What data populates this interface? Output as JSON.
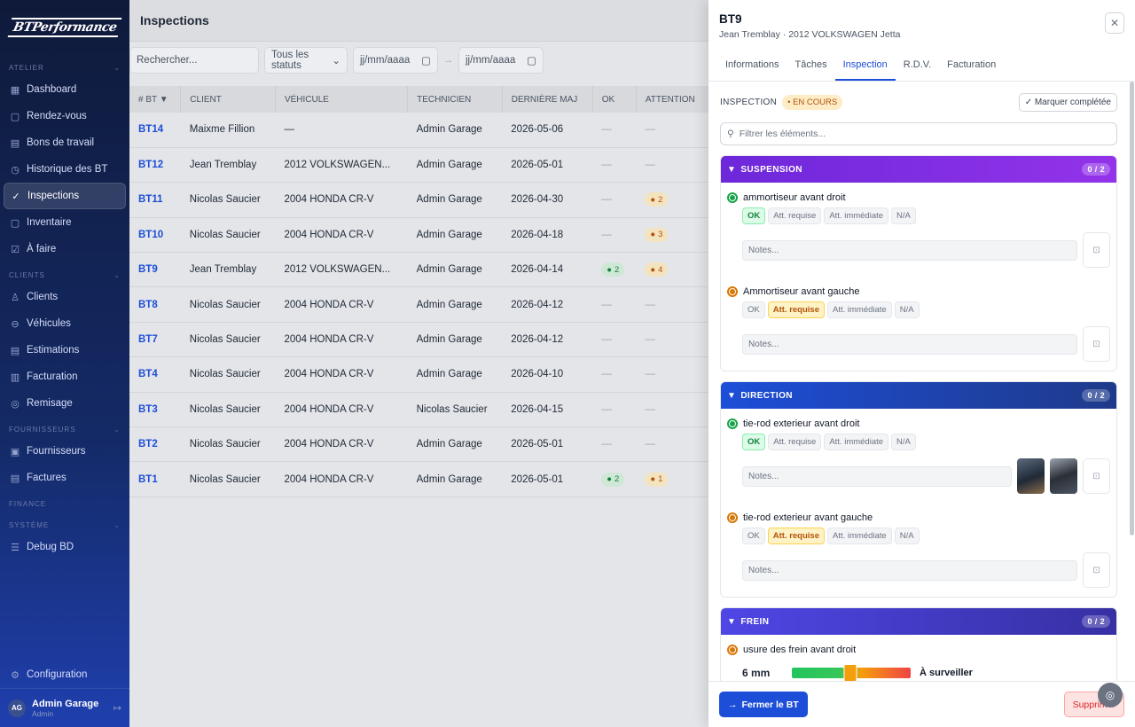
{
  "app": {
    "logo_text": "BTPerformance"
  },
  "sidebar": {
    "sections": [
      {
        "title": "ATELIER",
        "items": [
          {
            "label": "Dashboard",
            "icon": "grid-icon"
          },
          {
            "label": "Rendez-vous",
            "icon": "calendar-icon"
          },
          {
            "label": "Bons de travail",
            "icon": "clipboard-icon"
          },
          {
            "label": "Historique des BT",
            "icon": "clock-icon"
          },
          {
            "label": "Inspections",
            "icon": "check-circle-icon",
            "active": true
          },
          {
            "label": "Inventaire",
            "icon": "box-icon"
          },
          {
            "label": "À faire",
            "icon": "checkbox-icon"
          }
        ]
      },
      {
        "title": "CLIENTS",
        "items": [
          {
            "label": "Clients",
            "icon": "users-icon"
          },
          {
            "label": "Véhicules",
            "icon": "car-icon"
          },
          {
            "label": "Estimations",
            "icon": "document-icon"
          },
          {
            "label": "Facturation",
            "icon": "invoice-icon"
          },
          {
            "label": "Remisage",
            "icon": "tire-icon"
          }
        ]
      },
      {
        "title": "FOURNISSEURS",
        "items": [
          {
            "label": "Fournisseurs",
            "icon": "building-icon"
          },
          {
            "label": "Factures",
            "icon": "file-icon"
          }
        ]
      },
      {
        "title": "FINANCE",
        "items": []
      },
      {
        "title": "SYSTÈME",
        "items": [
          {
            "label": "Debug BD",
            "icon": "database-icon"
          }
        ]
      }
    ],
    "config_label": "Configuration",
    "user": {
      "initials": "AG",
      "name": "Admin Garage",
      "role": "Admin"
    }
  },
  "main": {
    "title": "Inspections",
    "search_placeholder": "Rechercher...",
    "status_filter": "Tous les statuts",
    "date_from": "jj/mm/aaaa",
    "date_to": "jj/mm/aaaa",
    "date_sep": "→",
    "columns": [
      "# BT ▼",
      "CLIENT",
      "VÉHICULE",
      "TECHNICIEN",
      "DERNIÈRE MAJ",
      "OK",
      "ATTENTION"
    ],
    "rows": [
      {
        "bt": "BT14",
        "client": "Maixme Fillion",
        "vehicle": "—",
        "tech": "Admin Garage",
        "date": "2026-05-06",
        "ok": "",
        "att": ""
      },
      {
        "bt": "BT12",
        "client": "Jean Tremblay",
        "vehicle": "2012 VOLKSWAGEN...",
        "tech": "Admin Garage",
        "date": "2026-05-01",
        "ok": "",
        "att": ""
      },
      {
        "bt": "BT11",
        "client": "Nicolas Saucier",
        "vehicle": "2004 HONDA CR-V",
        "tech": "Admin Garage",
        "date": "2026-04-30",
        "ok": "",
        "att": "2"
      },
      {
        "bt": "BT10",
        "client": "Nicolas Saucier",
        "vehicle": "2004 HONDA CR-V",
        "tech": "Admin Garage",
        "date": "2026-04-18",
        "ok": "",
        "att": "3"
      },
      {
        "bt": "BT9",
        "client": "Jean Tremblay",
        "vehicle": "2012 VOLKSWAGEN...",
        "tech": "Admin Garage",
        "date": "2026-04-14",
        "ok": "2",
        "att": "4"
      },
      {
        "bt": "BT8",
        "client": "Nicolas Saucier",
        "vehicle": "2004 HONDA CR-V",
        "tech": "Admin Garage",
        "date": "2026-04-12",
        "ok": "",
        "att": ""
      },
      {
        "bt": "BT7",
        "client": "Nicolas Saucier",
        "vehicle": "2004 HONDA CR-V",
        "tech": "Admin Garage",
        "date": "2026-04-12",
        "ok": "",
        "att": ""
      },
      {
        "bt": "BT4",
        "client": "Nicolas Saucier",
        "vehicle": "2004 HONDA CR-V",
        "tech": "Admin Garage",
        "date": "2026-04-10",
        "ok": "",
        "att": ""
      },
      {
        "bt": "BT3",
        "client": "Nicolas Saucier",
        "vehicle": "2004 HONDA CR-V",
        "tech": "Nicolas Saucier",
        "date": "2026-04-15",
        "ok": "",
        "att": ""
      },
      {
        "bt": "BT2",
        "client": "Nicolas Saucier",
        "vehicle": "2004 HONDA CR-V",
        "tech": "Admin Garage",
        "date": "2026-05-01",
        "ok": "",
        "att": ""
      },
      {
        "bt": "BT1",
        "client": "Nicolas Saucier",
        "vehicle": "2004 HONDA CR-V",
        "tech": "Admin Garage",
        "date": "2026-05-01",
        "ok": "2",
        "att": "1"
      }
    ],
    "empty_mark": "—"
  },
  "panel": {
    "title": "BT9",
    "subtitle": "Jean Tremblay · 2012 VOLKSWAGEN Jetta",
    "tabs": [
      "Informations",
      "Tâches",
      "Inspection",
      "R.D.V.",
      "Facturation"
    ],
    "active_tab": "Inspection",
    "inspection_label": "INSPECTION",
    "status_badge": "• EN COURS",
    "mark_complete": "✓ Marquer complétée",
    "filter_placeholder": "Filtrer les éléments...",
    "options": [
      "OK",
      "Att. requise",
      "Att. immédiate",
      "N/A"
    ],
    "notes_placeholder": "Notes...",
    "categories": [
      {
        "name": "SUSPENSION",
        "count": "0 / 2",
        "color": "#7c3aed",
        "items": [
          {
            "name": "ammortiseur avant droit",
            "state": "OK",
            "dot": "#16a34a"
          },
          {
            "name": "Ammortiseur avant gauche",
            "state": "Att. requise",
            "dot": "#d97706"
          }
        ]
      },
      {
        "name": "DIRECTION",
        "count": "0 / 2",
        "color": "#1d4ed8",
        "items": [
          {
            "name": "tie-rod exterieur avant droit",
            "state": "OK",
            "dot": "#16a34a",
            "photos": 2
          },
          {
            "name": "tie-rod exterieur avant gauche",
            "state": "Att. requise",
            "dot": "#d97706"
          }
        ]
      },
      {
        "name": "FREIN",
        "count": "0 / 2",
        "color": "#4f46e5",
        "items": [
          {
            "name": "usure des frein avant droit",
            "dot": "#d97706",
            "measurement": "6 mm",
            "gauge_fraction": 0.49,
            "measurement_status": "À surveiller"
          }
        ]
      }
    ],
    "close_bt": "Fermer le BT",
    "delete": "Supprimer"
  }
}
